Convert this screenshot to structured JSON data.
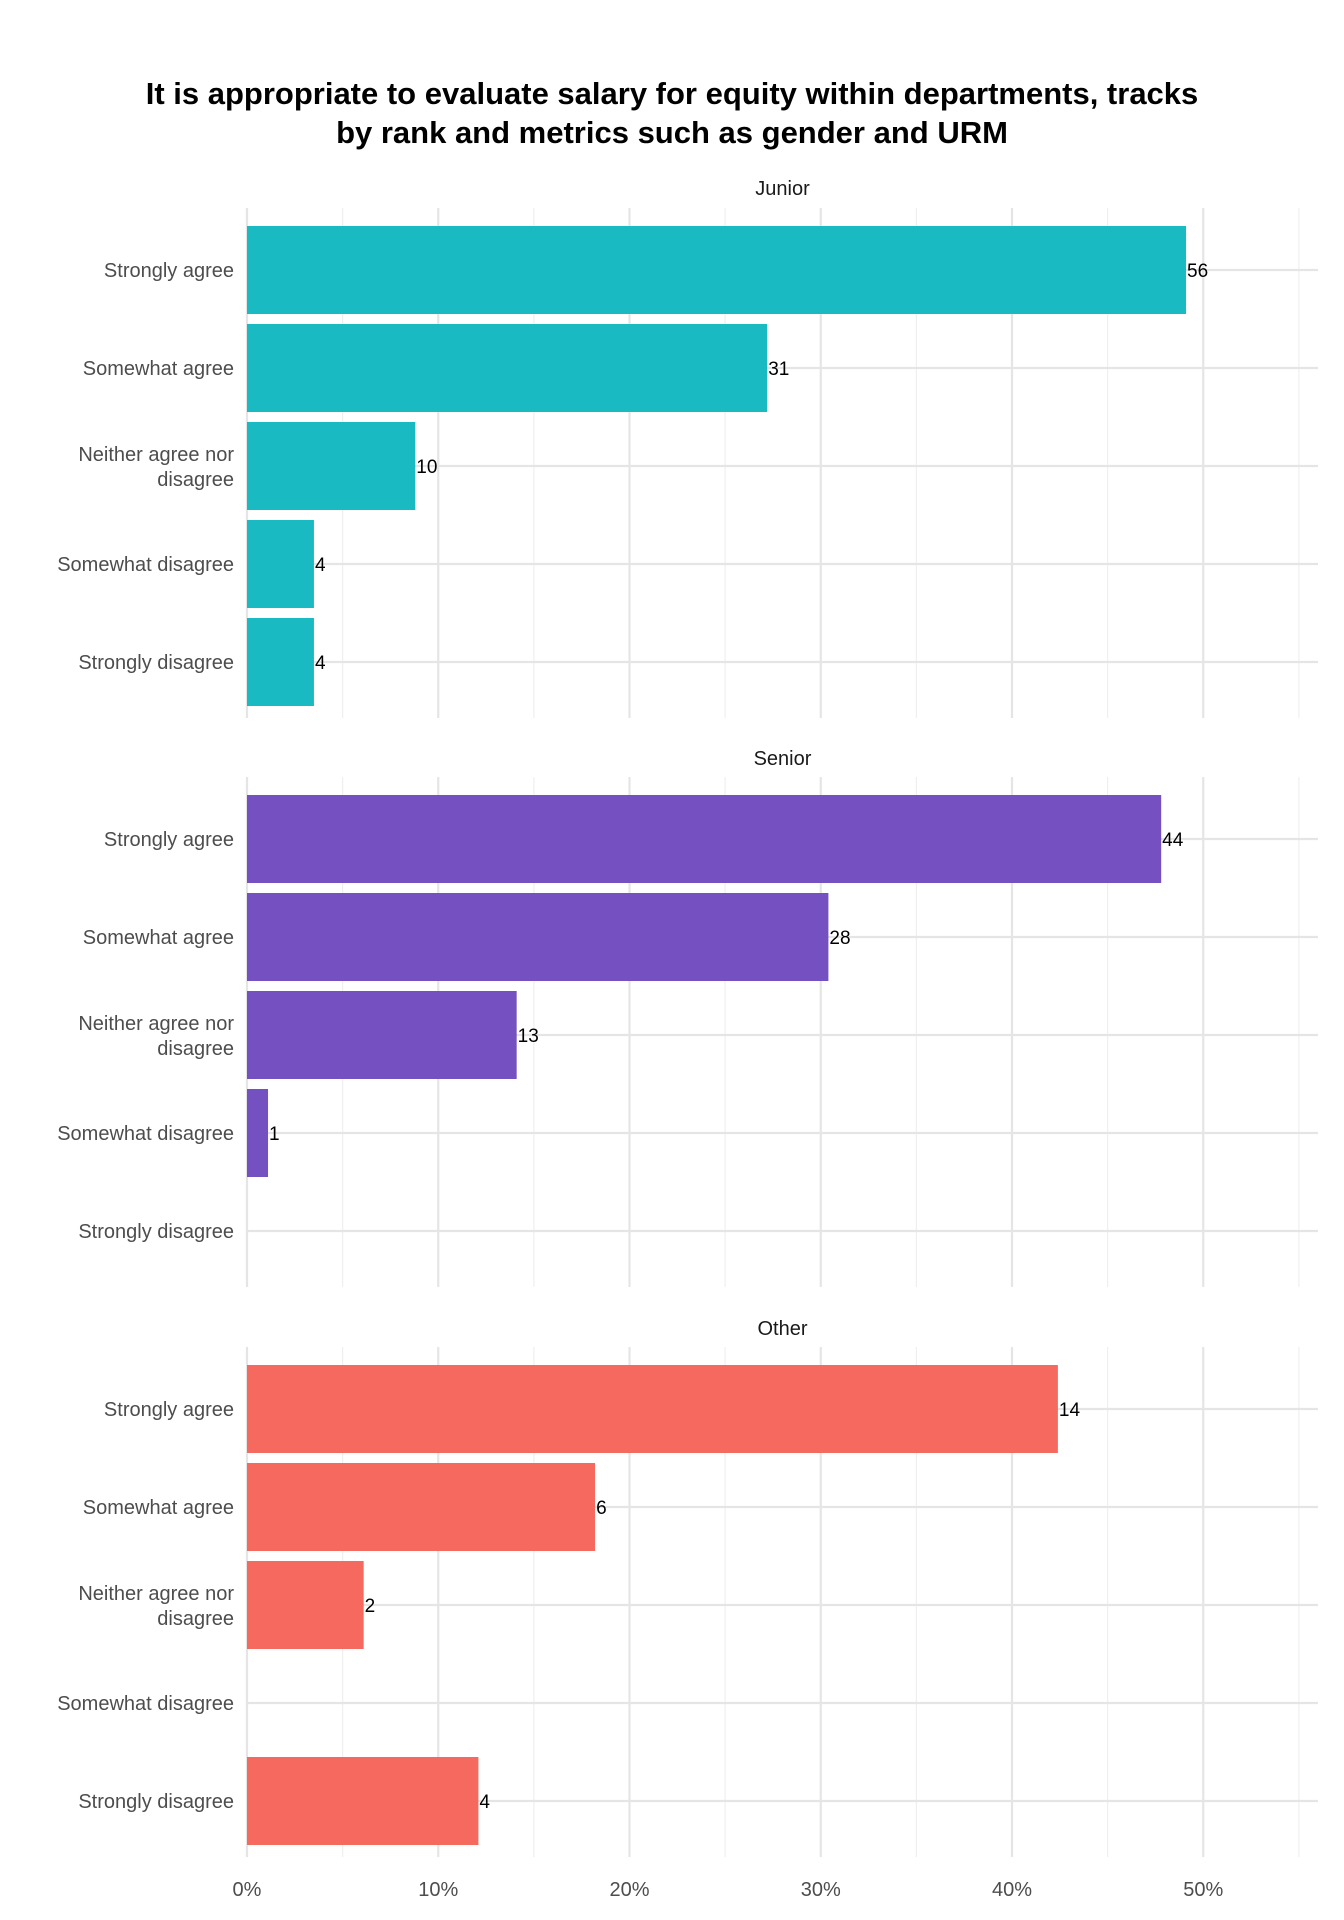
{
  "chart_data": {
    "type": "bar",
    "orientation": "horizontal",
    "title": "It is appropriate to evaluate salary for equity within departments, tracks by rank and metrics such as gender and URM",
    "xlabel": "",
    "ylabel": "",
    "xlim": [
      0,
      56
    ],
    "x_ticks": [
      "0%",
      "10%",
      "20%",
      "30%",
      "40%",
      "50%"
    ],
    "x_tick_values": [
      0,
      10,
      20,
      30,
      40,
      50
    ],
    "grid": true,
    "legend": "none",
    "categories": [
      "Strongly agree",
      "Somewhat agree",
      "Neither agree nor disagree",
      "Somewhat disagree",
      "Strongly disagree"
    ],
    "panels": [
      {
        "name": "Junior",
        "color": "#19BAC1",
        "percent": [
          49.1,
          27.2,
          8.8,
          3.5,
          3.5
        ],
        "counts": [
          56,
          31,
          10,
          4,
          4
        ]
      },
      {
        "name": "Senior",
        "color": "#7550C1",
        "percent": [
          47.8,
          30.4,
          14.1,
          1.1,
          0
        ],
        "counts": [
          44,
          28,
          13,
          1,
          null
        ]
      },
      {
        "name": "Other",
        "color": "#F5695F",
        "percent": [
          42.4,
          18.2,
          6.1,
          0,
          12.1
        ],
        "counts": [
          14,
          6,
          2,
          null,
          4
        ]
      }
    ]
  }
}
